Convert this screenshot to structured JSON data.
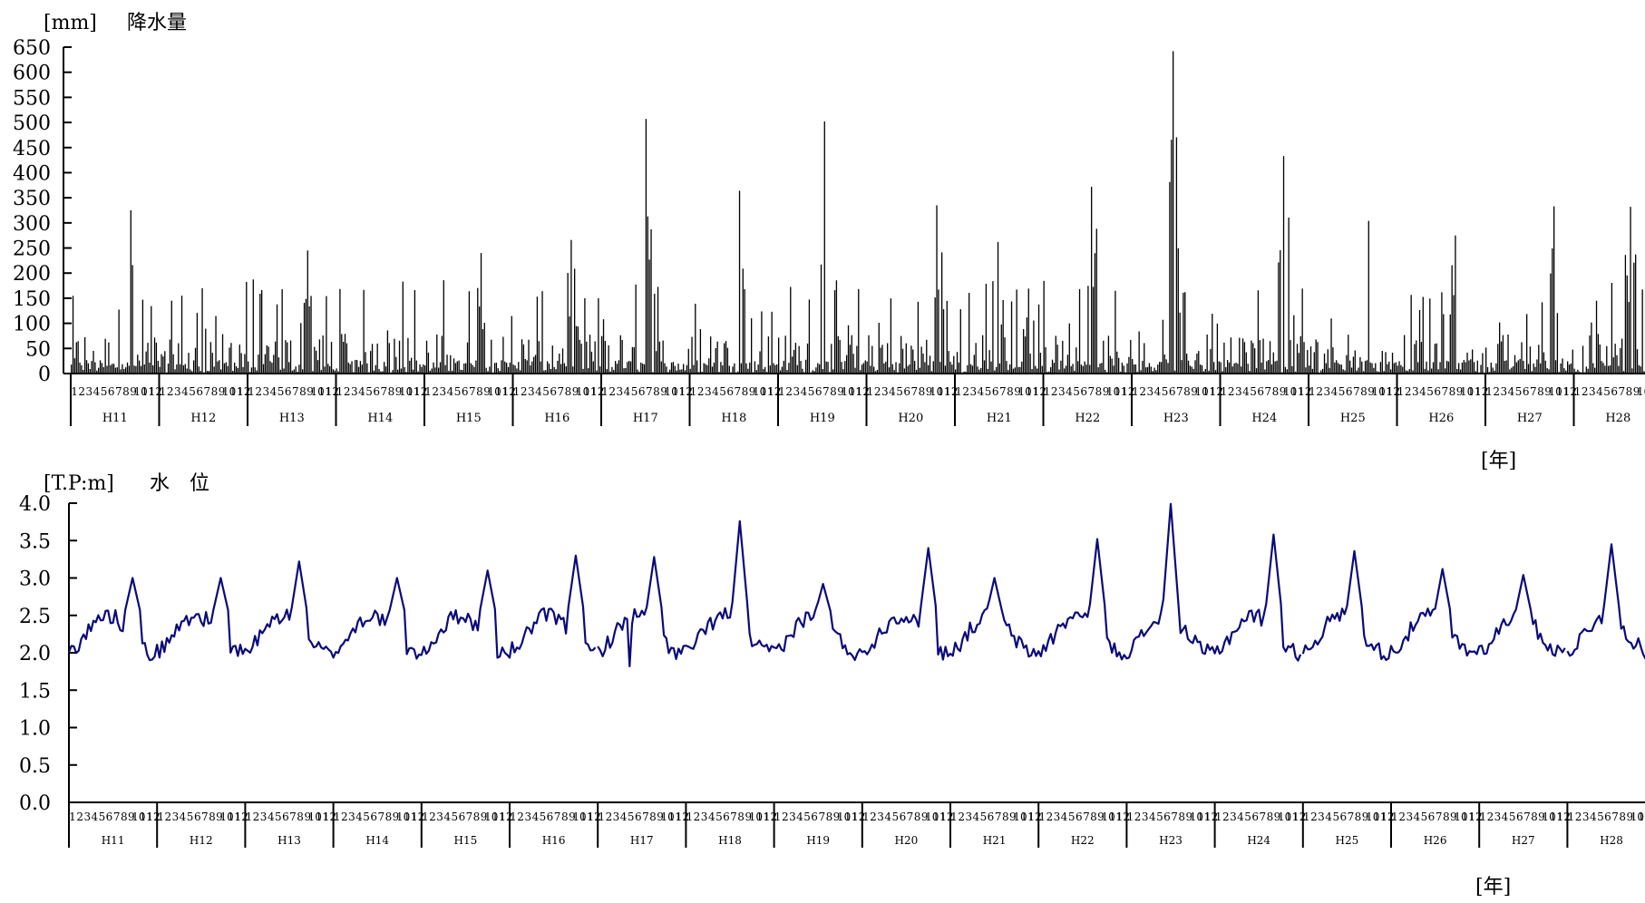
{
  "rain": {
    "unit": "[mm]",
    "name": "降水量",
    "y_ticks": [
      "650",
      "600",
      "550",
      "500",
      "450",
      "400",
      "350",
      "300",
      "250",
      "200",
      "150",
      "100",
      "50",
      "0"
    ]
  },
  "level": {
    "unit": "[T.P:m]",
    "name": "水　位",
    "y_ticks": [
      "4.0",
      "3.5",
      "3.0",
      "2.5",
      "2.0",
      "1.5",
      "1.0",
      "0.5",
      "0.0"
    ]
  },
  "x_unit_label": "[年]",
  "month_labels": [
    "1",
    "2",
    "3",
    "4",
    "5",
    "6",
    "7",
    "8",
    "9",
    "10",
    "11",
    "12"
  ],
  "colors": {
    "bars": "#000000",
    "line": "#0a0a7a",
    "axis": "#000000"
  },
  "chart_data": [
    {
      "type": "bar",
      "title": "降水量",
      "ylabel": "[mm]",
      "xlabel": "[年]",
      "ylim": [
        0,
        650
      ],
      "years": [
        "H11",
        "H12",
        "H13",
        "H14",
        "H15",
        "H16",
        "H17",
        "H18",
        "H19",
        "H20",
        "H21",
        "H22",
        "H23",
        "H24",
        "H25",
        "H26",
        "H27",
        "H28"
      ],
      "peak_values_approx": [
        {
          "year": "H11",
          "value": 325
        },
        {
          "year": "H12",
          "value": 170
        },
        {
          "year": "H13",
          "value": 245
        },
        {
          "year": "H14",
          "value": 183
        },
        {
          "year": "H15",
          "value": 240
        },
        {
          "year": "H16",
          "value": 266
        },
        {
          "year": "H17",
          "value": 507
        },
        {
          "year": "H18",
          "value": 364
        },
        {
          "year": "H19",
          "value": 502
        },
        {
          "year": "H20",
          "value": 335
        },
        {
          "year": "H21",
          "value": 262
        },
        {
          "year": "H22",
          "value": 372
        },
        {
          "year": "H23",
          "value": 642
        },
        {
          "year": "H24",
          "value": 433
        },
        {
          "year": "H25",
          "value": 304
        },
        {
          "year": "H26",
          "value": 275
        },
        {
          "year": "H27",
          "value": 333
        },
        {
          "year": "H28",
          "value": 332
        }
      ]
    },
    {
      "type": "line",
      "title": "水　位",
      "ylabel": "[T.P:m]",
      "xlabel": "[年]",
      "ylim": [
        0,
        4.0
      ],
      "years": [
        "H11",
        "H12",
        "H13",
        "H14",
        "H15",
        "H16",
        "H17",
        "H18",
        "H19",
        "H20",
        "H21",
        "H22",
        "H23",
        "H24",
        "H25",
        "H26",
        "H27",
        "H28"
      ],
      "peak_values_approx": [
        {
          "year": "H11",
          "value": 3.0
        },
        {
          "year": "H12",
          "value": 3.0
        },
        {
          "year": "H13",
          "value": 3.22
        },
        {
          "year": "H14",
          "value": 3.0
        },
        {
          "year": "H15",
          "value": 3.1
        },
        {
          "year": "H16",
          "value": 3.3
        },
        {
          "year": "H17",
          "value": 3.28
        },
        {
          "year": "H18",
          "value": 3.76
        },
        {
          "year": "H19",
          "value": 2.92
        },
        {
          "year": "H20",
          "value": 3.4
        },
        {
          "year": "H21",
          "value": 3.0
        },
        {
          "year": "H22",
          "value": 3.52
        },
        {
          "year": "H23",
          "value": 3.99
        },
        {
          "year": "H24",
          "value": 3.58
        },
        {
          "year": "H25",
          "value": 3.36
        },
        {
          "year": "H26",
          "value": 3.12
        },
        {
          "year": "H27",
          "value": 3.04
        },
        {
          "year": "H28",
          "value": 3.45
        }
      ],
      "min_value_approx": 1.82
    }
  ]
}
